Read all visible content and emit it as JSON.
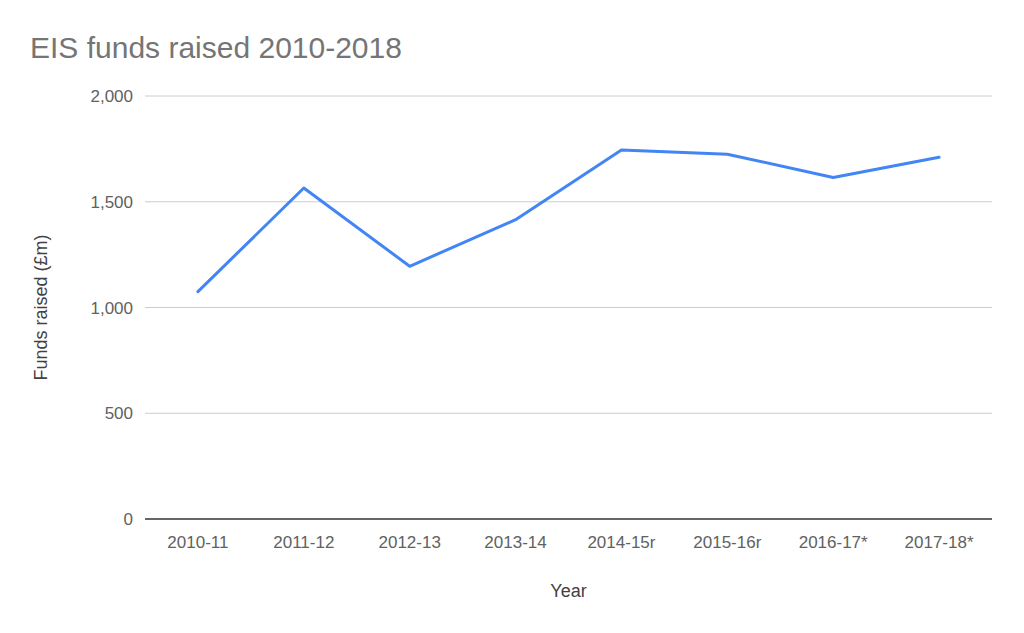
{
  "chart_data": {
    "type": "line",
    "title": "EIS funds raised 2010-2018",
    "x_label": "Year",
    "y_label": "Funds raised (£m)",
    "categories": [
      "2010-11",
      "2011-12",
      "2012-13",
      "2013-14",
      "2014-15r",
      "2015-16r",
      "2016-17*",
      "2017-18*"
    ],
    "values": [
      1075,
      1565,
      1195,
      1415,
      1745,
      1725,
      1615,
      1710
    ],
    "color": "#4285f4",
    "ylim": [
      0,
      2000
    ],
    "yticks": [
      0,
      {
        "value": 500,
        "label": "500"
      },
      {
        "value": 1000,
        "label": "1,000"
      },
      {
        "value": 1500,
        "label": "1,500"
      },
      {
        "value": 2000,
        "label": "2,000"
      }
    ],
    "grid": true
  }
}
